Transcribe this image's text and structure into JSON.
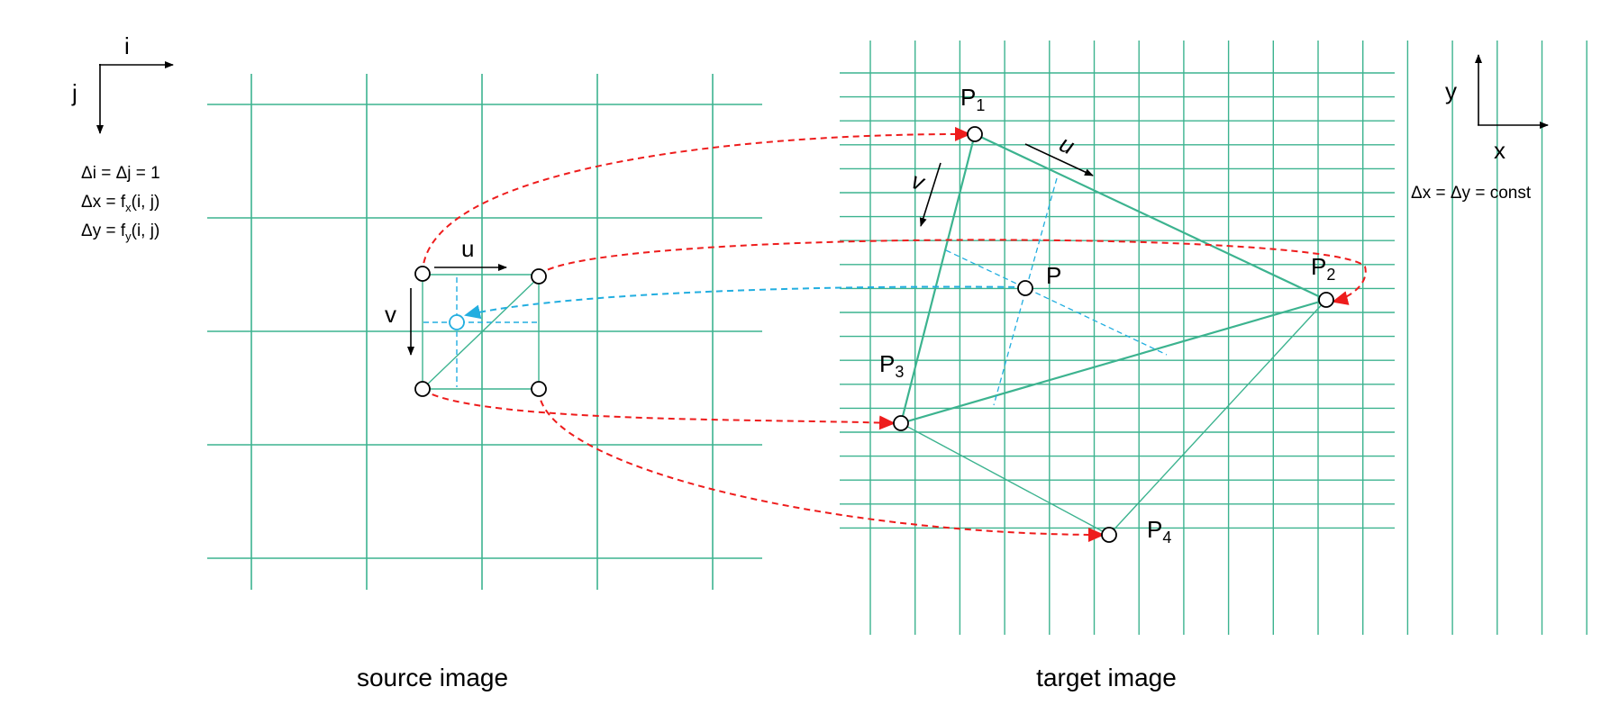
{
  "colors": {
    "grid": "#3cb38f",
    "mapping_arrow": "#ee1c1c",
    "sample_arrow": "#22aee0",
    "text": "#000000"
  },
  "left_axes": {
    "i_label": "i",
    "j_label": "j",
    "eq1": "Δi = Δj = 1",
    "eq2_prefix": "Δx = f",
    "eq2_sub": "x",
    "eq2_suffix": "(i, j)",
    "eq3_prefix": "Δy = f",
    "eq3_sub": "y",
    "eq3_suffix": "(i, j)"
  },
  "right_axes": {
    "y_label": "y",
    "x_label": "x",
    "eq": "Δx = Δy = const"
  },
  "source": {
    "caption": "source image",
    "u_label": "u",
    "v_label": "v"
  },
  "target": {
    "caption": "target image",
    "u_label": "u",
    "v_label": "v",
    "p_label": "P",
    "p1_main": "P",
    "p1_sub": "1",
    "p2_main": "P",
    "p2_sub": "2",
    "p3_main": "P",
    "p3_sub": "3",
    "p4_main": "P",
    "p4_sub": "4"
  }
}
